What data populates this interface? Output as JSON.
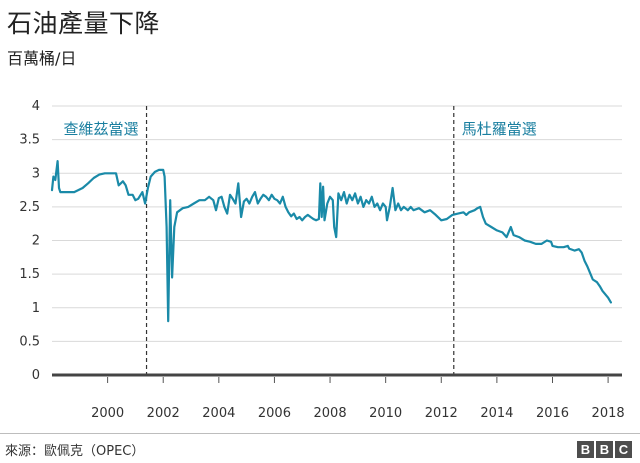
{
  "header": {
    "title": "石油產量下降",
    "subtitle": "百萬桶/日"
  },
  "footer": {
    "source": "來源：歐佩克（OPEC）",
    "logo_letters": [
      "B",
      "B",
      "C"
    ]
  },
  "colors": {
    "series": "#1a8aa8",
    "annotation_text": "#1a7fa0",
    "grid": "#d9d9d9",
    "axis": "#444444"
  },
  "chart_data": {
    "type": "line",
    "title": "石油產量下降",
    "ylabel": "百萬桶/日",
    "xlim": [
      1998.0,
      2018.5
    ],
    "ylim": [
      0,
      4
    ],
    "grid": true,
    "yticks": [
      {
        "value": 0,
        "label": "0"
      },
      {
        "value": 0.5,
        "label": "0.5"
      },
      {
        "value": 1,
        "label": "1"
      },
      {
        "value": 1.5,
        "label": "1.5"
      },
      {
        "value": 2,
        "label": "2"
      },
      {
        "value": 2.5,
        "label": "2.5"
      },
      {
        "value": 3,
        "label": "3"
      },
      {
        "value": 3.5,
        "label": "3.5"
      },
      {
        "value": 4,
        "label": "4"
      }
    ],
    "xticks": [
      {
        "value": 2000,
        "label": "2000"
      },
      {
        "value": 2002,
        "label": "2002"
      },
      {
        "value": 2004,
        "label": "2004"
      },
      {
        "value": 2006,
        "label": "2006"
      },
      {
        "value": 2008,
        "label": "2008"
      },
      {
        "value": 2010,
        "label": "2010"
      },
      {
        "value": 2012,
        "label": "2012"
      },
      {
        "value": 2014,
        "label": "2014"
      },
      {
        "value": 2016,
        "label": "2016"
      },
      {
        "value": 2018,
        "label": "2018"
      }
    ],
    "annotations": [
      {
        "x": 2001.4,
        "label": "查維茲當選",
        "side": "left"
      },
      {
        "x": 2012.45,
        "label": "馬杜羅當選",
        "side": "right"
      }
    ],
    "series": [
      {
        "name": "",
        "points": [
          [
            1998.0,
            2.75
          ],
          [
            1998.05,
            2.95
          ],
          [
            1998.12,
            2.9
          ],
          [
            1998.2,
            3.18
          ],
          [
            1998.25,
            2.78
          ],
          [
            1998.3,
            2.72
          ],
          [
            1998.5,
            2.72
          ],
          [
            1998.8,
            2.72
          ],
          [
            1999.1,
            2.78
          ],
          [
            1999.3,
            2.85
          ],
          [
            1999.5,
            2.93
          ],
          [
            1999.7,
            2.98
          ],
          [
            1999.9,
            3.0
          ],
          [
            2000.1,
            3.0
          ],
          [
            2000.3,
            3.0
          ],
          [
            2000.4,
            2.82
          ],
          [
            2000.55,
            2.88
          ],
          [
            2000.65,
            2.82
          ],
          [
            2000.75,
            2.68
          ],
          [
            2000.9,
            2.68
          ],
          [
            2001.0,
            2.6
          ],
          [
            2001.1,
            2.62
          ],
          [
            2001.25,
            2.72
          ],
          [
            2001.35,
            2.55
          ],
          [
            2001.45,
            2.78
          ],
          [
            2001.55,
            2.95
          ],
          [
            2001.7,
            3.02
          ],
          [
            2001.85,
            3.05
          ],
          [
            2002.0,
            3.05
          ],
          [
            2002.05,
            2.95
          ],
          [
            2002.12,
            2.2
          ],
          [
            2002.18,
            0.8
          ],
          [
            2002.25,
            2.6
          ],
          [
            2002.32,
            1.45
          ],
          [
            2002.4,
            2.2
          ],
          [
            2002.5,
            2.42
          ],
          [
            2002.7,
            2.48
          ],
          [
            2002.9,
            2.5
          ],
          [
            2003.1,
            2.55
          ],
          [
            2003.3,
            2.6
          ],
          [
            2003.5,
            2.6
          ],
          [
            2003.65,
            2.65
          ],
          [
            2003.8,
            2.6
          ],
          [
            2003.9,
            2.45
          ],
          [
            2004.0,
            2.63
          ],
          [
            2004.1,
            2.65
          ],
          [
            2004.2,
            2.5
          ],
          [
            2004.3,
            2.4
          ],
          [
            2004.4,
            2.68
          ],
          [
            2004.5,
            2.62
          ],
          [
            2004.6,
            2.55
          ],
          [
            2004.7,
            2.85
          ],
          [
            2004.8,
            2.35
          ],
          [
            2004.9,
            2.58
          ],
          [
            2005.0,
            2.62
          ],
          [
            2005.1,
            2.55
          ],
          [
            2005.2,
            2.65
          ],
          [
            2005.3,
            2.72
          ],
          [
            2005.4,
            2.55
          ],
          [
            2005.5,
            2.62
          ],
          [
            2005.6,
            2.68
          ],
          [
            2005.7,
            2.65
          ],
          [
            2005.8,
            2.6
          ],
          [
            2005.9,
            2.68
          ],
          [
            2006.0,
            2.62
          ],
          [
            2006.1,
            2.6
          ],
          [
            2006.2,
            2.55
          ],
          [
            2006.3,
            2.65
          ],
          [
            2006.4,
            2.5
          ],
          [
            2006.5,
            2.42
          ],
          [
            2006.6,
            2.36
          ],
          [
            2006.7,
            2.4
          ],
          [
            2006.8,
            2.32
          ],
          [
            2006.9,
            2.35
          ],
          [
            2007.0,
            2.3
          ],
          [
            2007.1,
            2.35
          ],
          [
            2007.2,
            2.38
          ],
          [
            2007.3,
            2.35
          ],
          [
            2007.4,
            2.32
          ],
          [
            2007.5,
            2.3
          ],
          [
            2007.6,
            2.32
          ],
          [
            2007.65,
            2.85
          ],
          [
            2007.7,
            2.35
          ],
          [
            2007.75,
            2.8
          ],
          [
            2007.8,
            2.3
          ],
          [
            2007.9,
            2.55
          ],
          [
            2008.0,
            2.65
          ],
          [
            2008.1,
            2.6
          ],
          [
            2008.15,
            2.2
          ],
          [
            2008.22,
            2.05
          ],
          [
            2008.3,
            2.7
          ],
          [
            2008.4,
            2.6
          ],
          [
            2008.5,
            2.72
          ],
          [
            2008.6,
            2.55
          ],
          [
            2008.7,
            2.68
          ],
          [
            2008.8,
            2.6
          ],
          [
            2008.9,
            2.7
          ],
          [
            2009.0,
            2.55
          ],
          [
            2009.1,
            2.65
          ],
          [
            2009.2,
            2.5
          ],
          [
            2009.3,
            2.6
          ],
          [
            2009.4,
            2.55
          ],
          [
            2009.5,
            2.65
          ],
          [
            2009.6,
            2.5
          ],
          [
            2009.7,
            2.55
          ],
          [
            2009.8,
            2.45
          ],
          [
            2009.9,
            2.55
          ],
          [
            2010.0,
            2.5
          ],
          [
            2010.05,
            2.3
          ],
          [
            2010.15,
            2.5
          ],
          [
            2010.25,
            2.78
          ],
          [
            2010.35,
            2.45
          ],
          [
            2010.45,
            2.55
          ],
          [
            2010.55,
            2.45
          ],
          [
            2010.65,
            2.5
          ],
          [
            2010.8,
            2.45
          ],
          [
            2010.9,
            2.5
          ],
          [
            2011.0,
            2.45
          ],
          [
            2011.2,
            2.48
          ],
          [
            2011.4,
            2.42
          ],
          [
            2011.6,
            2.45
          ],
          [
            2011.8,
            2.38
          ],
          [
            2012.0,
            2.3
          ],
          [
            2012.2,
            2.32
          ],
          [
            2012.4,
            2.38
          ],
          [
            2012.6,
            2.4
          ],
          [
            2012.8,
            2.42
          ],
          [
            2012.9,
            2.38
          ],
          [
            2013.0,
            2.42
          ],
          [
            2013.2,
            2.45
          ],
          [
            2013.3,
            2.48
          ],
          [
            2013.4,
            2.5
          ],
          [
            2013.5,
            2.35
          ],
          [
            2013.6,
            2.25
          ],
          [
            2013.8,
            2.2
          ],
          [
            2014.0,
            2.15
          ],
          [
            2014.2,
            2.12
          ],
          [
            2014.35,
            2.05
          ],
          [
            2014.5,
            2.2
          ],
          [
            2014.6,
            2.08
          ],
          [
            2014.8,
            2.05
          ],
          [
            2015.0,
            2.0
          ],
          [
            2015.2,
            1.98
          ],
          [
            2015.4,
            1.95
          ],
          [
            2015.6,
            1.95
          ],
          [
            2015.8,
            2.0
          ],
          [
            2015.95,
            1.98
          ],
          [
            2016.0,
            1.92
          ],
          [
            2016.2,
            1.9
          ],
          [
            2016.4,
            1.9
          ],
          [
            2016.55,
            1.92
          ],
          [
            2016.6,
            1.88
          ],
          [
            2016.8,
            1.85
          ],
          [
            2016.95,
            1.87
          ],
          [
            2017.05,
            1.82
          ],
          [
            2017.15,
            1.7
          ],
          [
            2017.25,
            1.62
          ],
          [
            2017.35,
            1.52
          ],
          [
            2017.45,
            1.42
          ],
          [
            2017.6,
            1.38
          ],
          [
            2017.7,
            1.32
          ],
          [
            2017.8,
            1.25
          ],
          [
            2017.9,
            1.2
          ],
          [
            2018.0,
            1.15
          ],
          [
            2018.1,
            1.08
          ]
        ]
      }
    ]
  }
}
